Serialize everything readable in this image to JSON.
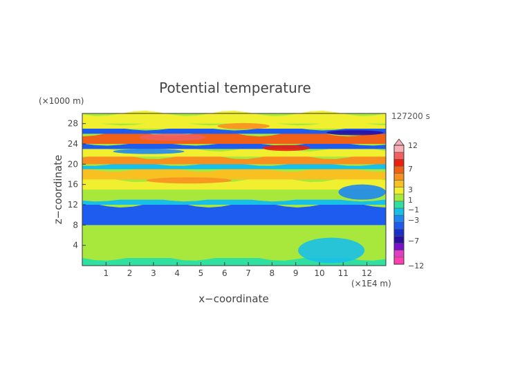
{
  "chart_data": {
    "type": "heatmap",
    "title": "Potential temperature",
    "xlabel": "x−coordinate",
    "ylabel": "z−coordinate",
    "x_unit": "(×1E4 m)",
    "y_unit": "(×1000 m)",
    "time_label": "127200 s",
    "xlim": [
      0,
      12.8
    ],
    "ylim": [
      0,
      30
    ],
    "x_ticks": [
      "1",
      "2",
      "3",
      "4",
      "5",
      "6",
      "7",
      "8",
      "9",
      "10",
      "11",
      "12"
    ],
    "y_ticks": [
      "4",
      "8",
      "12",
      "16",
      "20",
      "24",
      "28"
    ],
    "colorbar": {
      "labels": [
        "12",
        "7",
        "3",
        "1",
        "−1",
        "−3",
        "−7",
        "−12"
      ],
      "levels": [
        {
          "value": -12,
          "color": "#ff3fb0"
        },
        {
          "value": -9,
          "color": "#e040c0"
        },
        {
          "value": -7,
          "color": "#7a10c8"
        },
        {
          "value": -6,
          "color": "#2a10a0"
        },
        {
          "value": -5,
          "color": "#1830c8"
        },
        {
          "value": -4,
          "color": "#1e5cf0"
        },
        {
          "value": -3,
          "color": "#1e88f0"
        },
        {
          "value": -2,
          "color": "#18c0e8"
        },
        {
          "value": -1,
          "color": "#30e0a0"
        },
        {
          "value": 0,
          "color": "#a8e83c"
        },
        {
          "value": 1,
          "color": "#f0f030"
        },
        {
          "value": 2,
          "color": "#f8c020"
        },
        {
          "value": 3,
          "color": "#f89020"
        },
        {
          "value": 5,
          "color": "#f06018"
        },
        {
          "value": 7,
          "color": "#e82010"
        },
        {
          "value": 9,
          "color": "#f06060"
        },
        {
          "value": 12,
          "color": "#f8b0b8"
        }
      ]
    },
    "bands": [
      {
        "z": [
          0,
          1.5
        ],
        "value": -0.3
      },
      {
        "z": [
          1.5,
          6
        ],
        "value": 0.6
      },
      {
        "z": [
          6,
          8
        ],
        "value": 0
      },
      {
        "z": [
          8,
          12
        ],
        "value": -3.6
      },
      {
        "z": [
          12,
          13
        ],
        "value": -1.6
      },
      {
        "z": [
          13,
          15
        ],
        "value": 0.2
      },
      {
        "z": [
          15,
          17
        ],
        "value": 1.2
      },
      {
        "z": [
          17,
          19
        ],
        "value": 2.2
      },
      {
        "z": [
          19,
          20
        ],
        "value": -1.2
      },
      {
        "z": [
          20,
          21.5
        ],
        "value": 3.6
      },
      {
        "z": [
          21.5,
          23
        ],
        "value": 1.4
      },
      {
        "z": [
          23,
          24
        ],
        "value": -3.2
      },
      {
        "z": [
          24,
          26
        ],
        "value": 6.5
      },
      {
        "z": [
          26,
          27
        ],
        "value": -3.4
      },
      {
        "z": [
          27,
          28
        ],
        "value": 1.8
      },
      {
        "z": [
          28,
          30
        ],
        "value": 1.0
      }
    ],
    "features": [
      {
        "x": 3.8,
        "z": 25.3,
        "rx": 1.4,
        "rz": 0.7,
        "value": 10
      },
      {
        "x": 8.6,
        "z": 23.2,
        "rx": 1.0,
        "rz": 0.6,
        "value": 8
      },
      {
        "x": 11.5,
        "z": 26.2,
        "rx": 1.2,
        "rz": 0.5,
        "value": -6
      },
      {
        "x": 6.8,
        "z": 27.5,
        "rx": 1.1,
        "rz": 0.6,
        "value": 3.5
      },
      {
        "x": 2.8,
        "z": 22.5,
        "rx": 1.5,
        "rz": 0.5,
        "value": -3
      },
      {
        "x": 10.5,
        "z": 3.0,
        "rx": 1.4,
        "rz": 2.5,
        "value": -2
      },
      {
        "x": 11.8,
        "z": 14.5,
        "rx": 1.0,
        "rz": 1.5,
        "value": -2.5
      },
      {
        "x": 4.5,
        "z": 16.8,
        "rx": 1.8,
        "rz": 0.6,
        "value": 3.2
      }
    ]
  }
}
